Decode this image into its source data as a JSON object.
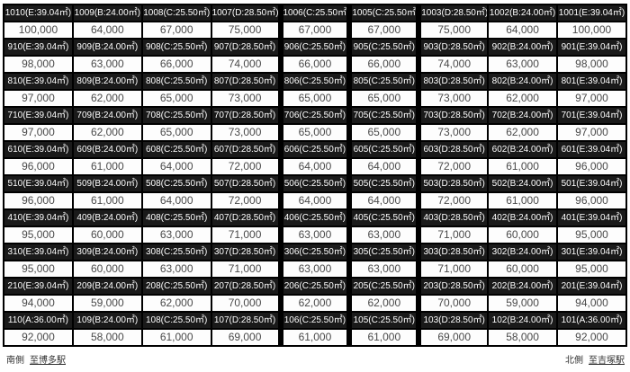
{
  "table": {
    "floors": [
      {
        "units": [
          {
            "label": "1010(E:39.04㎡)",
            "price": "100,000"
          },
          {
            "label": "1009(B:24.00㎡)",
            "price": "64,000"
          },
          {
            "label": "1008(C:25.50㎡)",
            "price": "67,000"
          },
          {
            "label": "1007(D:28.50㎡)",
            "price": "75,000"
          },
          {
            "label": "1006(C:25.50㎡)",
            "price": "67,000"
          },
          {
            "label": "1005(C:25.50㎡)",
            "price": "67,000"
          },
          {
            "label": "1003(D:28.50㎡)",
            "price": "75,000"
          },
          {
            "label": "1002(B:24.00㎡)",
            "price": "64,000"
          },
          {
            "label": "1001(E:39.04㎡)",
            "price": "100,000"
          }
        ]
      },
      {
        "units": [
          {
            "label": "910(E:39.04㎡)",
            "price": "98,000"
          },
          {
            "label": "909(B:24.00㎡)",
            "price": "63,000"
          },
          {
            "label": "908(C:25.50㎡)",
            "price": "66,000"
          },
          {
            "label": "907(D:28.50㎡)",
            "price": "74,000"
          },
          {
            "label": "906(C:25.50㎡)",
            "price": "66,000"
          },
          {
            "label": "905(C:25.50㎡)",
            "price": "66,000"
          },
          {
            "label": "903(D:28.50㎡)",
            "price": "74,000"
          },
          {
            "label": "902(B:24.00㎡)",
            "price": "63,000"
          },
          {
            "label": "901(E:39.04㎡)",
            "price": "98,000"
          }
        ]
      },
      {
        "units": [
          {
            "label": "810(E:39.04㎡)",
            "price": "97,000"
          },
          {
            "label": "809(B:24.00㎡)",
            "price": "62,000"
          },
          {
            "label": "808(C:25.50㎡)",
            "price": "65,000"
          },
          {
            "label": "807(D:28.50㎡)",
            "price": "73,000"
          },
          {
            "label": "806(C:25.50㎡)",
            "price": "65,000"
          },
          {
            "label": "805(C:25.50㎡)",
            "price": "65,000"
          },
          {
            "label": "803(D:28.50㎡)",
            "price": "73,000"
          },
          {
            "label": "802(B:24.00㎡)",
            "price": "62,000"
          },
          {
            "label": "801(E:39.04㎡)",
            "price": "97,000"
          }
        ]
      },
      {
        "units": [
          {
            "label": "710(E:39.04㎡)",
            "price": "97,000"
          },
          {
            "label": "709(B:24.00㎡)",
            "price": "62,000"
          },
          {
            "label": "708(C:25.50㎡)",
            "price": "65,000"
          },
          {
            "label": "707(D:28.50㎡)",
            "price": "73,000"
          },
          {
            "label": "706(C:25.50㎡)",
            "price": "65,000"
          },
          {
            "label": "705(C:25.50㎡)",
            "price": "65,000"
          },
          {
            "label": "703(D:28.50㎡)",
            "price": "73,000"
          },
          {
            "label": "702(B:24.00㎡)",
            "price": "62,000"
          },
          {
            "label": "701(E:39.04㎡)",
            "price": "97,000"
          }
        ]
      },
      {
        "units": [
          {
            "label": "610(E:39.04㎡)",
            "price": "96,000"
          },
          {
            "label": "609(B:24.00㎡)",
            "price": "61,000"
          },
          {
            "label": "608(C:25.50㎡)",
            "price": "64,000"
          },
          {
            "label": "607(D:28.50㎡)",
            "price": "72,000"
          },
          {
            "label": "606(C:25.50㎡)",
            "price": "64,000"
          },
          {
            "label": "605(C:25.50㎡)",
            "price": "64,000"
          },
          {
            "label": "603(D:28.50㎡)",
            "price": "72,000"
          },
          {
            "label": "602(B:24.00㎡)",
            "price": "61,000"
          },
          {
            "label": "601(E:39.04㎡)",
            "price": "96,000"
          }
        ]
      },
      {
        "units": [
          {
            "label": "510(E:39.04㎡)",
            "price": "96,000"
          },
          {
            "label": "509(B:24.00㎡)",
            "price": "61,000"
          },
          {
            "label": "508(C:25.50㎡)",
            "price": "64,000"
          },
          {
            "label": "507(D:28.50㎡)",
            "price": "72,000"
          },
          {
            "label": "506(C:25.50㎡)",
            "price": "64,000"
          },
          {
            "label": "505(C:25.50㎡)",
            "price": "64,000"
          },
          {
            "label": "503(D:28.50㎡)",
            "price": "72,000"
          },
          {
            "label": "502(B:24.00㎡)",
            "price": "61,000"
          },
          {
            "label": "501(E:39.04㎡)",
            "price": "96,000"
          }
        ]
      },
      {
        "units": [
          {
            "label": "410(E:39.04㎡)",
            "price": "95,000"
          },
          {
            "label": "409(B:24.00㎡)",
            "price": "60,000"
          },
          {
            "label": "408(C:25.50㎡)",
            "price": "63,000"
          },
          {
            "label": "407(D:28.50㎡)",
            "price": "71,000"
          },
          {
            "label": "406(C:25.50㎡)",
            "price": "63,000"
          },
          {
            "label": "405(C:25.50㎡)",
            "price": "63,000"
          },
          {
            "label": "403(D:28.50㎡)",
            "price": "71,000"
          },
          {
            "label": "402(B:24.00㎡)",
            "price": "60,000"
          },
          {
            "label": "401(E:39.04㎡)",
            "price": "95,000"
          }
        ]
      },
      {
        "units": [
          {
            "label": "310(E:39.04㎡)",
            "price": "95,000"
          },
          {
            "label": "309(B:24.00㎡)",
            "price": "60,000"
          },
          {
            "label": "308(C:25.50㎡)",
            "price": "63,000"
          },
          {
            "label": "307(D:28.50㎡)",
            "price": "71,000"
          },
          {
            "label": "306(C:25.50㎡)",
            "price": "63,000"
          },
          {
            "label": "305(C:25.50㎡)",
            "price": "63,000"
          },
          {
            "label": "303(D:28.50㎡)",
            "price": "71,000"
          },
          {
            "label": "302(B:24.00㎡)",
            "price": "60,000"
          },
          {
            "label": "301(E:39.04㎡)",
            "price": "95,000"
          }
        ]
      },
      {
        "units": [
          {
            "label": "210(E:39.04㎡)",
            "price": "94,000"
          },
          {
            "label": "209(B:24.00㎡)",
            "price": "59,000"
          },
          {
            "label": "208(C:25.50㎡)",
            "price": "62,000"
          },
          {
            "label": "207(D:28.50㎡)",
            "price": "70,000"
          },
          {
            "label": "206(C:25.50㎡)",
            "price": "62,000"
          },
          {
            "label": "205(C:25.50㎡)",
            "price": "62,000"
          },
          {
            "label": "203(D:28.50㎡)",
            "price": "70,000"
          },
          {
            "label": "202(B:24.00㎡)",
            "price": "59,000"
          },
          {
            "label": "201(E:39.04㎡)",
            "price": "94,000"
          }
        ]
      },
      {
        "units": [
          {
            "label": "110(A:36.00㎡)",
            "price": "92,000"
          },
          {
            "label": "109(B:24.00㎡)",
            "price": "58,000"
          },
          {
            "label": "108(C:25.50㎡)",
            "price": "61,000"
          },
          {
            "label": "107(D:28.50㎡)",
            "price": "69,000"
          },
          {
            "label": "106(C:25.50㎡)",
            "price": "61,000"
          },
          {
            "label": "105(C:25.50㎡)",
            "price": "61,000"
          },
          {
            "label": "103(D:28.50㎡)",
            "price": "69,000"
          },
          {
            "label": "102(B:24.00㎡)",
            "price": "58,000"
          },
          {
            "label": "101(A:36.00㎡)",
            "price": "92,000"
          }
        ]
      }
    ]
  },
  "footer": {
    "south_label": "南側",
    "south_station": "至博多駅",
    "north_label": "北側",
    "north_station": "至吉塚駅"
  },
  "colors": {
    "header_bg": "#1a1a1a",
    "header_text": "#ffffff",
    "price_text": "#4a4a4a",
    "grid": "#000000"
  }
}
